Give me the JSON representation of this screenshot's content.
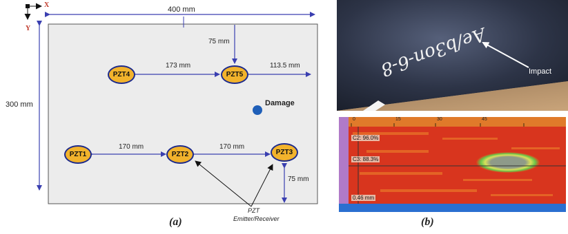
{
  "diagram_a": {
    "axes": {
      "x": "X",
      "y": "Y"
    },
    "width_label": "400 mm",
    "height_label": "300 mm",
    "transducers": [
      {
        "id": "pzt4",
        "label": "PZT4"
      },
      {
        "id": "pzt5",
        "label": "PZT5"
      },
      {
        "id": "pzt1",
        "label": "PZT1"
      },
      {
        "id": "pzt2",
        "label": "PZT2"
      },
      {
        "id": "pzt3",
        "label": "PZT3"
      }
    ],
    "dimensions": {
      "pzt4_pzt5": "173 mm",
      "pzt5_top": "75 mm",
      "pzt5_right": "113.5 mm",
      "pzt1_pzt2": "170 mm",
      "pzt2_pzt3": "170 mm",
      "pzt3_bottom": "75  mm"
    },
    "damage_label": "Damage",
    "pzt_note": [
      "PZT",
      "Emitter/Receiver"
    ],
    "caption": "(a)",
    "colors": {
      "plate": "#ececec",
      "pzt_fill": "#f2b32c",
      "arrow": "#3a3fb0",
      "damage": "#1f5fb8"
    }
  },
  "photo_b": {
    "specimen_marking": "Ae/b3on-6-8",
    "impact_label": "Impact"
  },
  "cscan_b": {
    "gates": [
      "C2: 96.0%",
      "C3: 88.3%",
      "0.46 mm"
    ],
    "scale_ticks": [
      "0",
      "15",
      "30",
      "45"
    ]
  },
  "caption_b": "(b)"
}
